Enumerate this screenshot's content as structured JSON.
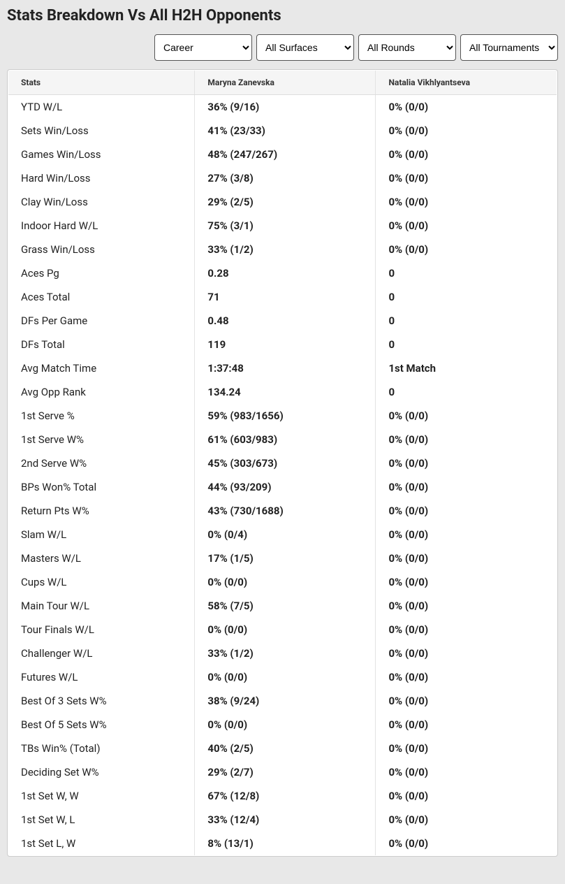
{
  "title": "Stats Breakdown Vs All H2H Opponents",
  "filters": {
    "career": {
      "selected": "Career",
      "options": [
        "Career"
      ]
    },
    "surfaces": {
      "selected": "All Surfaces",
      "options": [
        "All Surfaces"
      ]
    },
    "rounds": {
      "selected": "All Rounds",
      "options": [
        "All Rounds"
      ]
    },
    "tournaments": {
      "selected": "All Tournaments",
      "options": [
        "All Tournaments"
      ]
    }
  },
  "table": {
    "columns": [
      "Stats",
      "Maryna Zanevska",
      "Natalia Vikhlyantseva"
    ],
    "rows": [
      {
        "stat": "YTD W/L",
        "p1": "36% (9/16)",
        "p2": "0% (0/0)"
      },
      {
        "stat": "Sets Win/Loss",
        "p1": "41% (23/33)",
        "p2": "0% (0/0)"
      },
      {
        "stat": "Games Win/Loss",
        "p1": "48% (247/267)",
        "p2": "0% (0/0)"
      },
      {
        "stat": "Hard Win/Loss",
        "p1": "27% (3/8)",
        "p2": "0% (0/0)"
      },
      {
        "stat": "Clay Win/Loss",
        "p1": "29% (2/5)",
        "p2": "0% (0/0)"
      },
      {
        "stat": "Indoor Hard W/L",
        "p1": "75% (3/1)",
        "p2": "0% (0/0)"
      },
      {
        "stat": "Grass Win/Loss",
        "p1": "33% (1/2)",
        "p2": "0% (0/0)"
      },
      {
        "stat": "Aces Pg",
        "p1": "0.28",
        "p2": "0"
      },
      {
        "stat": "Aces Total",
        "p1": "71",
        "p2": "0"
      },
      {
        "stat": "DFs Per Game",
        "p1": "0.48",
        "p2": "0"
      },
      {
        "stat": "DFs Total",
        "p1": "119",
        "p2": "0"
      },
      {
        "stat": "Avg Match Time",
        "p1": "1:37:48",
        "p2": "1st Match"
      },
      {
        "stat": "Avg Opp Rank",
        "p1": "134.24",
        "p2": "0"
      },
      {
        "stat": "1st Serve %",
        "p1": "59% (983/1656)",
        "p2": "0% (0/0)"
      },
      {
        "stat": "1st Serve W%",
        "p1": "61% (603/983)",
        "p2": "0% (0/0)"
      },
      {
        "stat": "2nd Serve W%",
        "p1": "45% (303/673)",
        "p2": "0% (0/0)"
      },
      {
        "stat": "BPs Won% Total",
        "p1": "44% (93/209)",
        "p2": "0% (0/0)"
      },
      {
        "stat": "Return Pts W%",
        "p1": "43% (730/1688)",
        "p2": "0% (0/0)"
      },
      {
        "stat": "Slam W/L",
        "p1": "0% (0/4)",
        "p2": "0% (0/0)"
      },
      {
        "stat": "Masters W/L",
        "p1": "17% (1/5)",
        "p2": "0% (0/0)"
      },
      {
        "stat": "Cups W/L",
        "p1": "0% (0/0)",
        "p2": "0% (0/0)"
      },
      {
        "stat": "Main Tour W/L",
        "p1": "58% (7/5)",
        "p2": "0% (0/0)"
      },
      {
        "stat": "Tour Finals W/L",
        "p1": "0% (0/0)",
        "p2": "0% (0/0)"
      },
      {
        "stat": "Challenger W/L",
        "p1": "33% (1/2)",
        "p2": "0% (0/0)"
      },
      {
        "stat": "Futures W/L",
        "p1": "0% (0/0)",
        "p2": "0% (0/0)"
      },
      {
        "stat": "Best Of 3 Sets W%",
        "p1": "38% (9/24)",
        "p2": "0% (0/0)"
      },
      {
        "stat": "Best Of 5 Sets W%",
        "p1": "0% (0/0)",
        "p2": "0% (0/0)"
      },
      {
        "stat": "TBs Win% (Total)",
        "p1": "40% (2/5)",
        "p2": "0% (0/0)"
      },
      {
        "stat": "Deciding Set W%",
        "p1": "29% (2/7)",
        "p2": "0% (0/0)"
      },
      {
        "stat": "1st Set W, W",
        "p1": "67% (12/8)",
        "p2": "0% (0/0)"
      },
      {
        "stat": "1st Set W, L",
        "p1": "33% (12/4)",
        "p2": "0% (0/0)"
      },
      {
        "stat": "1st Set L, W",
        "p1": "8% (13/1)",
        "p2": "0% (0/0)"
      }
    ]
  },
  "colors": {
    "page_bg": "#e8e8e8",
    "panel_bg": "#ffffff",
    "header_bg": "#f5f5f5",
    "border": "#e3e3e3",
    "text": "#222222"
  }
}
